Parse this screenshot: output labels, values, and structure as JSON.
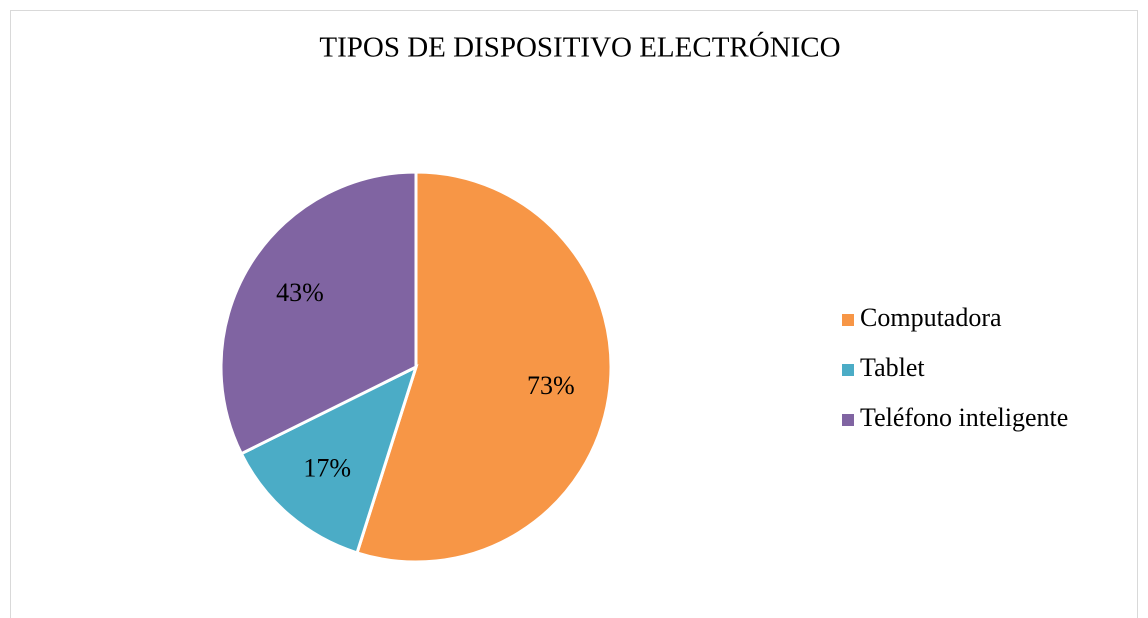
{
  "chart_data": {
    "type": "pie",
    "title": "TIPOS DE DISPOSITIVO ELECTRÓNICO",
    "categories": [
      "Computadora",
      "Tablet",
      "Teléfono inteligente"
    ],
    "values": [
      73,
      17,
      43
    ],
    "value_labels": [
      "73%",
      "17%",
      "43%"
    ],
    "colors": [
      "#f79646",
      "#4bacc6",
      "#8064a2"
    ],
    "legend": "right"
  }
}
